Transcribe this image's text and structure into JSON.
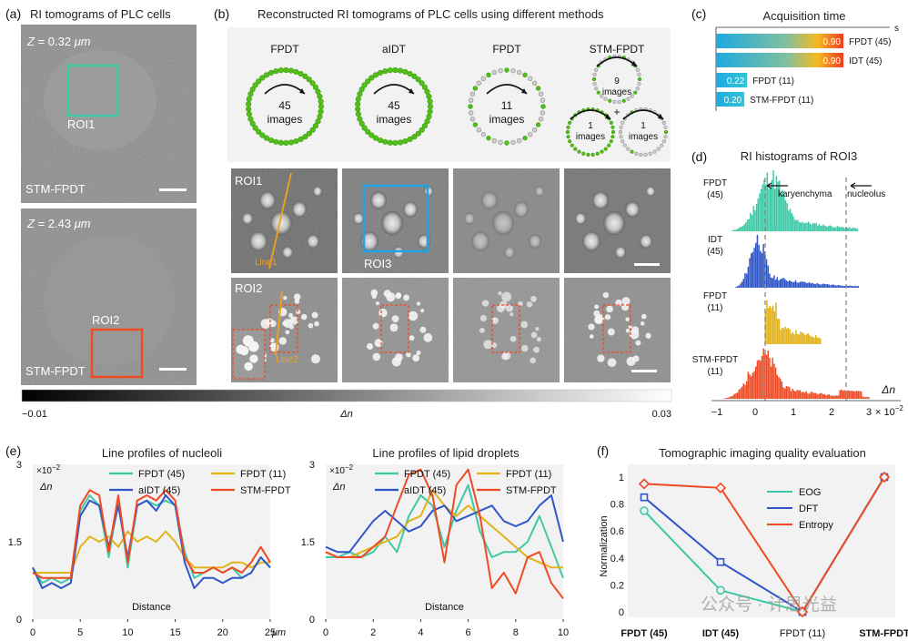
{
  "panels": {
    "a": {
      "label": "(a)",
      "title": "RI tomograms of PLC cells",
      "top": {
        "z_prefix": "Z",
        "z_value": " = 0.32 ",
        "z_unit": "μm",
        "roi": "ROI1",
        "method": "STM-FPDT"
      },
      "bottom": {
        "z_prefix": "Z",
        "z_value": " = 2.43 ",
        "z_unit": "μm",
        "roi": "ROI2",
        "method": "STM-FPDT"
      }
    },
    "b": {
      "label": "(b)",
      "title": "Reconstructed RI tomograms of PLC cells using different methods",
      "columns": [
        {
          "name": "FPDT",
          "count": "45",
          "unit": "images"
        },
        {
          "name": "aIDT",
          "count": "45",
          "unit": "images"
        },
        {
          "name": "FPDT",
          "count": "11",
          "unit": "images"
        },
        {
          "name": "STM-FPDT",
          "count": "9",
          "unit": "images",
          "sub_count_left": "1",
          "sub_count_right": "1",
          "sub_unit": "images",
          "plus": "+"
        }
      ],
      "roi1": "ROI1",
      "line1": "Line1",
      "roi3": "ROI3",
      "roi2": "ROI2",
      "line2": "Line2"
    },
    "c": {
      "label": "(c)",
      "title": "Acquisition time",
      "unit": "s",
      "bars": [
        {
          "value": 0.9,
          "label": "0.90",
          "name": "FPDT (45)"
        },
        {
          "value": 0.9,
          "label": "0.90",
          "name": "IDT (45)"
        },
        {
          "value": 0.22,
          "label": "0.22",
          "name": "FPDT (11)"
        },
        {
          "value": 0.2,
          "label": "0.20",
          "name": "STM-FPDT (11)"
        }
      ]
    },
    "d": {
      "label": "(d)",
      "title": "RI histograms of ROI3",
      "rows": [
        {
          "name1": "FPDT",
          "name2": "(45)",
          "color": "#3ec9a6"
        },
        {
          "name1": "IDT",
          "name2": "(45)",
          "color": "#2e56c8"
        },
        {
          "name1": "FPDT",
          "name2": "(11)",
          "color": "#e2b21a"
        },
        {
          "name1": "STM-FPDT",
          "name2": "(11)",
          "color": "#ef4a24"
        }
      ],
      "annotations": {
        "karyenchyma": "karyenchyma",
        "nucleolus": "nucleolus"
      },
      "xlabel": "Δn",
      "xticks": [
        "−1",
        "0",
        "1",
        "2",
        "3"
      ],
      "xscale_base": "× 10",
      "xscale_exp": "−2"
    },
    "colorbar": {
      "min": "−0.01",
      "mid": "Δn",
      "max": "0.03"
    },
    "e": {
      "label": "(e)",
      "left_title": "Line profiles of nucleoli",
      "right_title": "Line profiles of lipid droplets",
      "scale_base": "×10",
      "scale_exp": "−2",
      "ylabel": "Δn",
      "xlabel": "Distance",
      "unit": "μm",
      "legend": [
        "FPDT (45)",
        "FPDT (11)",
        "aIDT (45)",
        "STM-FPDT"
      ],
      "left_xticks": [
        "0",
        "5",
        "10",
        "15",
        "20",
        "25"
      ],
      "right_xticks": [
        "0",
        "2",
        "4",
        "6",
        "8",
        "10"
      ],
      "yticks": [
        "0",
        "1.5",
        "3"
      ]
    },
    "f": {
      "label": "(f)",
      "title": "Tomographic imaging quality evaluation",
      "ylabel": "Normalization",
      "legend": [
        "EOG",
        "DFT",
        "Entropy"
      ],
      "watermark": "公众号 · 计思光益"
    }
  },
  "chart_data": [
    {
      "type": "bar",
      "title": "Acquisition time",
      "ylabel": "s",
      "categories": [
        "FPDT (45)",
        "IDT (45)",
        "FPDT (11)",
        "STM-FPDT (11)"
      ],
      "values": [
        0.9,
        0.9,
        0.22,
        0.2
      ]
    },
    {
      "type": "line",
      "title": "Tomographic imaging quality evaluation",
      "ylabel": "Normalization",
      "categories": [
        "FPDT (45)",
        "IDT (45)",
        "FPDT (11)",
        "STM-FPDT"
      ],
      "ylim": [
        0,
        1
      ],
      "series": [
        {
          "name": "EOG",
          "color": "#3ec9a6",
          "values": [
            0.75,
            0.16,
            0.0,
            1.0
          ]
        },
        {
          "name": "DFT",
          "color": "#2e56c8",
          "values": [
            0.85,
            0.37,
            0.0,
            1.0
          ]
        },
        {
          "name": "Entropy",
          "color": "#ef4a24",
          "values": [
            0.95,
            0.92,
            0.0,
            1.0
          ]
        }
      ]
    },
    {
      "type": "line",
      "title": "Line profiles of nucleoli",
      "xlabel": "Distance",
      "ylabel": "Δn",
      "xlim": [
        0,
        25
      ],
      "ylim": [
        0,
        3
      ],
      "x": [
        0,
        1,
        2,
        3,
        4,
        5,
        6,
        7,
        8,
        9,
        10,
        11,
        12,
        13,
        14,
        15,
        16,
        17,
        18,
        19,
        20,
        21,
        22,
        23,
        24,
        25
      ],
      "series": [
        {
          "name": "FPDT (45)",
          "color": "#3ec9a6",
          "values": [
            1.0,
            0.7,
            0.8,
            0.7,
            0.8,
            2.1,
            2.4,
            2.2,
            1.2,
            2.3,
            1.0,
            2.2,
            2.3,
            2.2,
            2.3,
            2.2,
            1.3,
            0.8,
            0.9,
            1.0,
            0.9,
            1.0,
            0.8,
            0.9,
            1.2,
            1.0
          ]
        },
        {
          "name": "FPDT (11)",
          "color": "#e2b21a",
          "values": [
            0.9,
            0.9,
            0.9,
            0.9,
            0.9,
            1.4,
            1.6,
            1.5,
            1.6,
            1.4,
            1.7,
            1.5,
            1.6,
            1.5,
            1.7,
            1.5,
            1.2,
            1.0,
            1.0,
            1.0,
            1.0,
            1.1,
            1.1,
            1.0,
            1.1,
            1.1
          ]
        },
        {
          "name": "aIDT (45)",
          "color": "#2e56c8",
          "values": [
            1.0,
            0.6,
            0.7,
            0.6,
            0.7,
            2.0,
            2.3,
            2.2,
            1.4,
            2.2,
            1.2,
            2.2,
            2.3,
            2.1,
            2.4,
            2.2,
            1.1,
            0.6,
            0.8,
            0.8,
            0.7,
            0.8,
            0.8,
            0.9,
            1.2,
            1.0
          ]
        },
        {
          "name": "STM-FPDT",
          "color": "#ef4a24",
          "values": [
            0.9,
            0.8,
            0.8,
            0.8,
            0.8,
            2.2,
            2.5,
            2.4,
            1.3,
            2.4,
            1.1,
            2.3,
            2.4,
            2.3,
            2.5,
            2.3,
            1.2,
            0.9,
            0.9,
            1.0,
            0.9,
            1.0,
            0.9,
            1.1,
            1.4,
            1.1
          ]
        }
      ]
    },
    {
      "type": "line",
      "title": "Line profiles of lipid droplets",
      "xlabel": "Distance",
      "ylabel": "Δn",
      "xlim": [
        0,
        10
      ],
      "ylim": [
        0,
        3
      ],
      "x": [
        0,
        0.5,
        1,
        1.5,
        2,
        2.5,
        3,
        3.5,
        4,
        4.5,
        5,
        5.5,
        6,
        6.5,
        7,
        7.5,
        8,
        8.5,
        9,
        9.5,
        10
      ],
      "series": [
        {
          "name": "FPDT (45)",
          "color": "#3ec9a6",
          "values": [
            1.2,
            1.2,
            1.3,
            1.2,
            1.3,
            1.6,
            1.3,
            2.0,
            2.4,
            2.2,
            1.4,
            2.1,
            2.6,
            1.7,
            1.2,
            1.3,
            1.3,
            1.5,
            2.0,
            1.4,
            0.8
          ]
        },
        {
          "name": "FPDT (11)",
          "color": "#e2b21a",
          "values": [
            1.3,
            1.2,
            1.2,
            1.3,
            1.4,
            1.5,
            1.6,
            1.9,
            2.0,
            2.5,
            2.2,
            2.0,
            2.2,
            2.0,
            1.8,
            1.6,
            1.4,
            1.2,
            1.1,
            1.0,
            1.0
          ]
        },
        {
          "name": "aIDT (45)",
          "color": "#2e56c8",
          "values": [
            1.4,
            1.3,
            1.3,
            1.6,
            1.9,
            2.1,
            1.9,
            1.7,
            1.8,
            2.1,
            2.2,
            1.9,
            2.0,
            2.1,
            2.2,
            1.9,
            1.8,
            1.9,
            2.2,
            2.4,
            1.5
          ]
        },
        {
          "name": "STM-FPDT",
          "color": "#ef4a24",
          "values": [
            1.3,
            1.2,
            1.2,
            1.2,
            1.4,
            1.6,
            2.2,
            2.8,
            2.9,
            2.4,
            1.1,
            2.6,
            2.9,
            2.0,
            0.6,
            0.9,
            0.5,
            1.2,
            1.3,
            0.7,
            0.4
          ]
        }
      ]
    }
  ]
}
